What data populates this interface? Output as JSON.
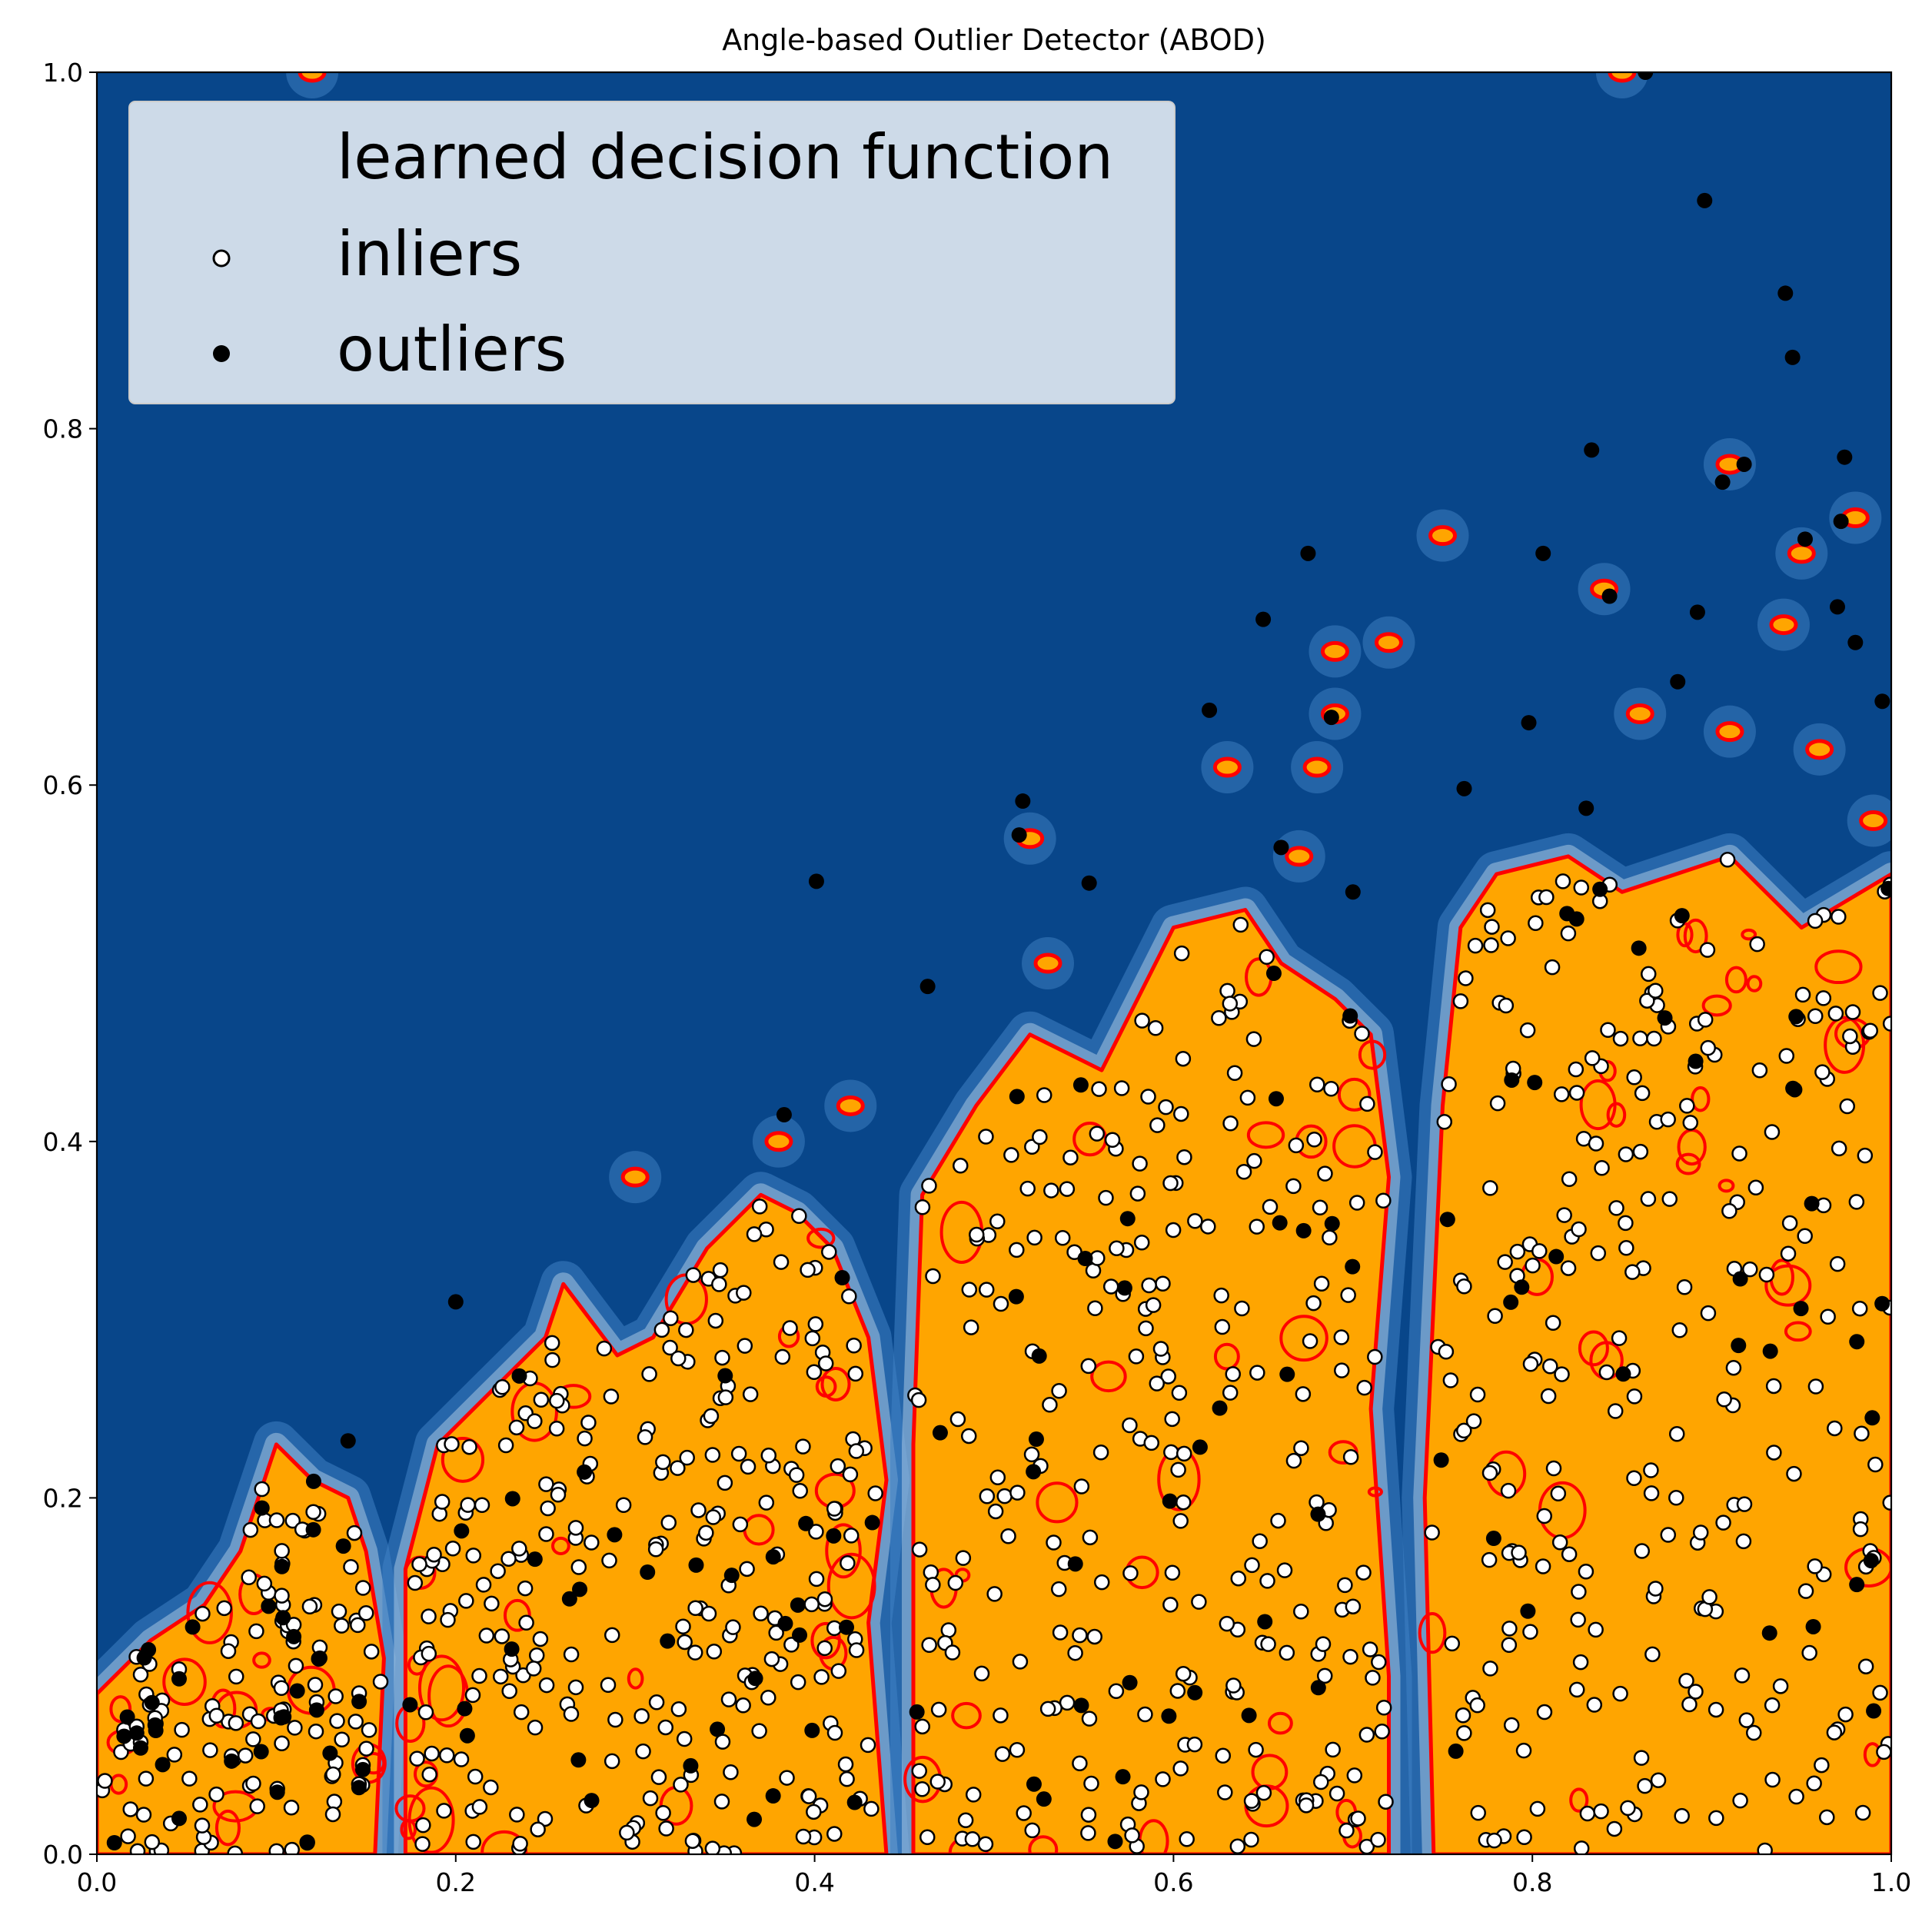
{
  "chart_data": {
    "type": "scatter",
    "title": "Angle-based Outlier Detector (ABOD)",
    "xlabel": "",
    "ylabel": "",
    "xlim": [
      0.0,
      1.0
    ],
    "ylim": [
      0.0,
      1.0
    ],
    "x_ticks": [
      "0.0",
      "0.2",
      "0.4",
      "0.6",
      "0.8",
      "1.0"
    ],
    "y_ticks": [
      "0.0",
      "0.2",
      "0.4",
      "0.6",
      "0.8",
      "1.0"
    ],
    "grid": false,
    "legend": {
      "placement": "upper-left",
      "entries": [
        {
          "key": "decision",
          "label": "learned decision function"
        },
        {
          "key": "inliers",
          "label": "inliers"
        },
        {
          "key": "outliers",
          "label": "outliers"
        }
      ]
    },
    "colors": {
      "background": "#08468a",
      "halo": "#3f82c4",
      "halo_light": "#c3d9ee",
      "inlier_region": "#ffa500",
      "decision_boundary": "#ff0000",
      "inlier_fill": "#ffffff",
      "outlier_fill": "#000000",
      "marker_edge": "#000000"
    },
    "regions": [
      {
        "name": "cluster-1",
        "outline": [
          [
            0.0,
            0.0
          ],
          [
            0.0,
            0.09
          ],
          [
            0.03,
            0.12
          ],
          [
            0.06,
            0.14
          ],
          [
            0.08,
            0.17
          ],
          [
            0.1,
            0.23
          ],
          [
            0.12,
            0.21
          ],
          [
            0.14,
            0.2
          ],
          [
            0.15,
            0.17
          ],
          [
            0.16,
            0.11
          ],
          [
            0.155,
            0.0
          ]
        ]
      },
      {
        "name": "cluster-2",
        "outline": [
          [
            0.172,
            0.0
          ],
          [
            0.172,
            0.16
          ],
          [
            0.19,
            0.23
          ],
          [
            0.22,
            0.26
          ],
          [
            0.25,
            0.29
          ],
          [
            0.26,
            0.32
          ],
          [
            0.29,
            0.28
          ],
          [
            0.31,
            0.29
          ],
          [
            0.34,
            0.34
          ],
          [
            0.37,
            0.37
          ],
          [
            0.39,
            0.36
          ],
          [
            0.41,
            0.34
          ],
          [
            0.43,
            0.29
          ],
          [
            0.44,
            0.21
          ],
          [
            0.43,
            0.13
          ],
          [
            0.44,
            0.0
          ]
        ]
      },
      {
        "name": "cluster-3",
        "outline": [
          [
            0.455,
            0.0
          ],
          [
            0.455,
            0.23
          ],
          [
            0.46,
            0.37
          ],
          [
            0.49,
            0.42
          ],
          [
            0.52,
            0.46
          ],
          [
            0.56,
            0.44
          ],
          [
            0.6,
            0.52
          ],
          [
            0.64,
            0.53
          ],
          [
            0.66,
            0.5
          ],
          [
            0.69,
            0.48
          ],
          [
            0.71,
            0.46
          ],
          [
            0.72,
            0.38
          ],
          [
            0.71,
            0.25
          ],
          [
            0.72,
            0.1
          ],
          [
            0.72,
            0.0
          ]
        ]
      },
      {
        "name": "cluster-4",
        "outline": [
          [
            0.745,
            0.0
          ],
          [
            0.74,
            0.2
          ],
          [
            0.75,
            0.42
          ],
          [
            0.76,
            0.52
          ],
          [
            0.78,
            0.55
          ],
          [
            0.82,
            0.56
          ],
          [
            0.85,
            0.54
          ],
          [
            0.88,
            0.55
          ],
          [
            0.91,
            0.56
          ],
          [
            0.95,
            0.52
          ],
          [
            1.0,
            0.55
          ],
          [
            1.0,
            0.0
          ]
        ]
      }
    ],
    "isolated_contours": [
      [
        0.3,
        0.38
      ],
      [
        0.38,
        0.4
      ],
      [
        0.42,
        0.42
      ],
      [
        0.53,
        0.5
      ],
      [
        0.52,
        0.57
      ],
      [
        0.63,
        0.61
      ],
      [
        0.69,
        0.675
      ],
      [
        0.72,
        0.68
      ],
      [
        0.69,
        0.64
      ],
      [
        0.68,
        0.61
      ],
      [
        0.67,
        0.56
      ],
      [
        0.75,
        0.74
      ],
      [
        0.84,
        0.71
      ],
      [
        0.91,
        0.78
      ],
      [
        0.95,
        0.73
      ],
      [
        0.94,
        0.69
      ],
      [
        0.98,
        0.75
      ],
      [
        0.86,
        0.64
      ],
      [
        0.91,
        0.63
      ],
      [
        0.96,
        0.62
      ],
      [
        0.99,
        0.58
      ],
      [
        0.85,
        1.0
      ],
      [
        0.12,
        1.0
      ]
    ],
    "outliers": [
      [
        0.863,
        1.0
      ],
      [
        0.896,
        0.928
      ],
      [
        0.941,
        0.876
      ],
      [
        0.945,
        0.84
      ],
      [
        0.833,
        0.788
      ],
      [
        0.974,
        0.784
      ],
      [
        0.918,
        0.78
      ],
      [
        0.906,
        0.77
      ],
      [
        0.675,
        0.73
      ],
      [
        0.806,
        0.73
      ],
      [
        0.952,
        0.738
      ],
      [
        0.972,
        0.748
      ],
      [
        0.892,
        0.697
      ],
      [
        0.843,
        0.706
      ],
      [
        0.65,
        0.693
      ],
      [
        0.62,
        0.642
      ],
      [
        0.688,
        0.638
      ],
      [
        0.798,
        0.635
      ],
      [
        0.881,
        0.658
      ],
      [
        0.995,
        0.647
      ],
      [
        0.516,
        0.591
      ],
      [
        0.514,
        0.572
      ],
      [
        0.553,
        0.545
      ],
      [
        0.401,
        0.546
      ],
      [
        0.463,
        0.487
      ],
      [
        0.383,
        0.415
      ],
      [
        0.2,
        0.31
      ],
      [
        0.14,
        0.232
      ],
      [
        0.762,
        0.598
      ],
      [
        0.83,
        0.587
      ],
      [
        0.66,
        0.565
      ],
      [
        0.7,
        0.54
      ],
      [
        0.97,
        0.7
      ],
      [
        0.98,
        0.68
      ]
    ]
  }
}
